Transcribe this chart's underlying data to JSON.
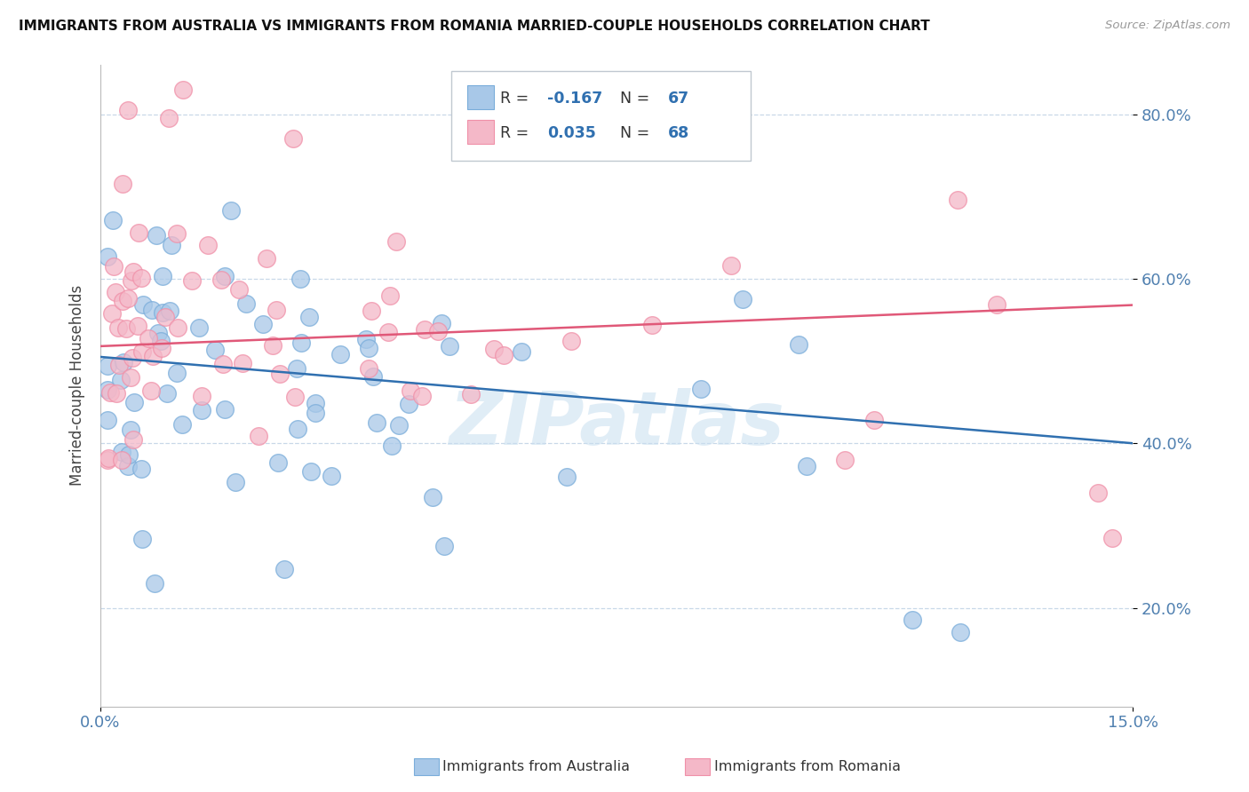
{
  "title": "IMMIGRANTS FROM AUSTRALIA VS IMMIGRANTS FROM ROMANIA MARRIED-COUPLE HOUSEHOLDS CORRELATION CHART",
  "source": "Source: ZipAtlas.com",
  "ylabel": "Married-couple Households",
  "xlim": [
    0.0,
    0.15
  ],
  "ylim": [
    0.08,
    0.86
  ],
  "xtick_positions": [
    0.0,
    0.15
  ],
  "xtick_labels": [
    "0.0%",
    "15.0%"
  ],
  "ytick_positions": [
    0.2,
    0.4,
    0.6,
    0.8
  ],
  "ytick_labels": [
    "20.0%",
    "40.0%",
    "60.0%",
    "80.0%"
  ],
  "color_blue": "#a8c8e8",
  "color_pink": "#f4b8c8",
  "color_blue_edge": "#7aadda",
  "color_pink_edge": "#f090a8",
  "color_blue_line": "#3070b0",
  "color_pink_line": "#e05878",
  "background": "#ffffff",
  "grid_color": "#c8d8e8",
  "tick_color": "#5080b0",
  "watermark_color": "#c8dff0",
  "aus_blue_line_y0": 0.505,
  "aus_blue_line_y1": 0.4,
  "rom_pink_line_y0": 0.518,
  "rom_pink_line_y1": 0.568
}
